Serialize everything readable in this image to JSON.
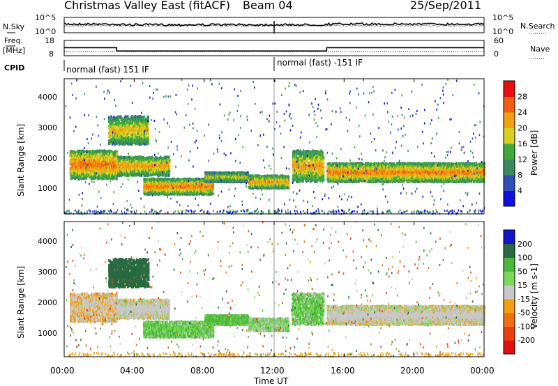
{
  "header": {
    "title": "Christmas Valley East (fitACF)",
    "beam": "Beam 04",
    "date": "25/Sep/2011"
  },
  "sky_panel": {
    "left_label": "N.Sky",
    "right_label": "N.Search",
    "left_ticks": [
      "10^5",
      "10^0"
    ],
    "right_ticks": [
      "10^5",
      "10^0"
    ]
  },
  "freq_panel": {
    "left_label_1": "Freq.",
    "left_label_2": "[MHz]",
    "right_label": "Nave",
    "left_ticks": [
      "18",
      "8"
    ],
    "right_ticks": [
      "60",
      "0"
    ]
  },
  "cpid": {
    "label": "CPID",
    "segments": [
      {
        "text": "normal (fast) 151 IF",
        "start_hour": 0
      },
      {
        "text": "normal (fast) -151 IF",
        "start_hour": 12
      }
    ]
  },
  "x_axis": {
    "label": "Time UT",
    "ticks": [
      "00:00",
      "04:00",
      "08:00",
      "12:00",
      "16:00",
      "20:00",
      "00:00"
    ]
  },
  "power_panel": {
    "ylabel": "Slant Range [km]",
    "yticks": [
      "1000",
      "2000",
      "3000",
      "4000"
    ],
    "colorbar_label": "Power [dB]",
    "colorbar_ticks": [
      "4",
      "8",
      "12",
      "16",
      "20",
      "24",
      "28"
    ],
    "colors": [
      "#1010e0",
      "#2f4fb8",
      "#3a8a60",
      "#3faa3a",
      "#d8d020",
      "#f0a010",
      "#f06010",
      "#e81010"
    ]
  },
  "velocity_panel": {
    "ylabel": "Slant Range [km]",
    "yticks": [
      "1000",
      "2000",
      "3000",
      "4000"
    ],
    "colorbar_label": "Velocity [m s-1]",
    "colorbar_ticks": [
      "200",
      "100",
      "50",
      "15",
      "-15",
      "-50",
      "-100",
      "-200"
    ],
    "colors": [
      "#1414c8",
      "#2a6a40",
      "#4ab83a",
      "#7cd85a",
      "#c8c8c8",
      "#f0a010",
      "#f07010",
      "#e84010",
      "#e01010"
    ]
  },
  "chart_data": {
    "type": "heatmap",
    "x_range_hours": [
      0,
      24
    ],
    "y_range_km": [
      180,
      4500
    ],
    "frequency_mhz": [
      {
        "t_start": 0,
        "t_end": 3,
        "value": 14
      },
      {
        "t_start": 3,
        "t_end": 15,
        "value": 11
      },
      {
        "t_start": 15,
        "t_end": 24,
        "value": 14
      }
    ],
    "echo_regions": [
      {
        "t_start": 0.3,
        "t_end": 3.0,
        "r_from_km": 1300,
        "r_to_km": 2200,
        "power_db": 25,
        "velocity": -10
      },
      {
        "t_start": 3.0,
        "t_end": 6.0,
        "r_from_km": 1400,
        "r_to_km": 2000,
        "power_db": 22,
        "velocity": 0
      },
      {
        "t_start": 4.5,
        "t_end": 8.5,
        "r_from_km": 800,
        "r_to_km": 1300,
        "power_db": 24,
        "velocity": 30
      },
      {
        "t_start": 2.5,
        "t_end": 4.8,
        "r_from_km": 2400,
        "r_to_km": 3300,
        "power_db": 20,
        "velocity": 120
      },
      {
        "t_start": 8.0,
        "t_end": 10.5,
        "r_from_km": 1200,
        "r_to_km": 1500,
        "power_db": 18,
        "velocity": 40
      },
      {
        "t_start": 10.5,
        "t_end": 12.8,
        "r_from_km": 1000,
        "r_to_km": 1400,
        "power_db": 22,
        "velocity": 20
      },
      {
        "t_start": 13.0,
        "t_end": 14.8,
        "r_from_km": 1200,
        "r_to_km": 2200,
        "power_db": 22,
        "velocity": 30
      },
      {
        "t_start": 15.0,
        "t_end": 24.0,
        "r_from_km": 1200,
        "r_to_km": 1800,
        "power_db": 24,
        "velocity": 0
      }
    ]
  }
}
